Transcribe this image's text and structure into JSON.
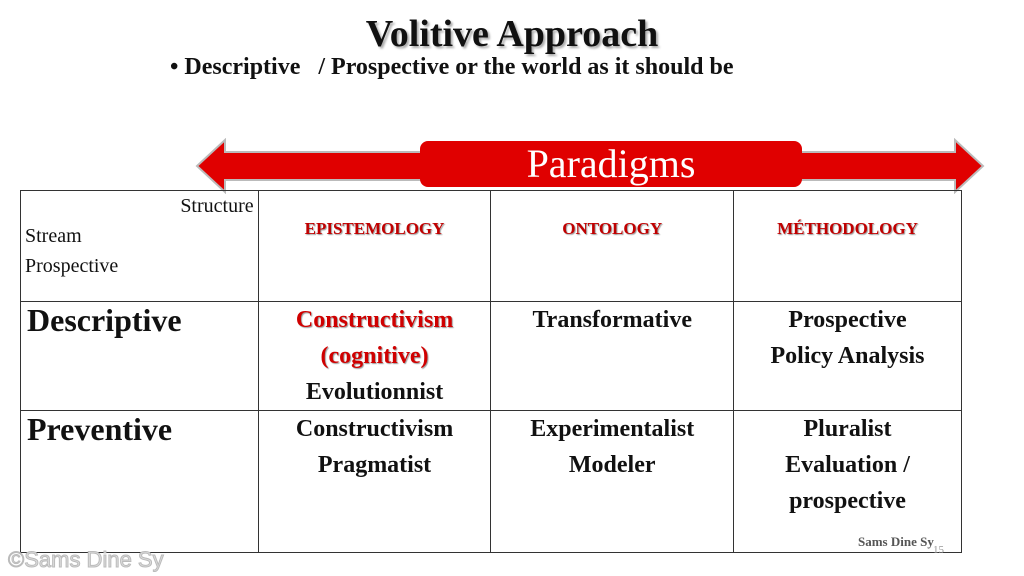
{
  "title": "Volitive Approach",
  "bullet": "Descriptive   / Prospective or the world as it should be",
  "banner": "Paradigms",
  "colors": {
    "accent": "#e00000",
    "header_text": "#c00000"
  },
  "table": {
    "corner": [
      "Structure",
      "Stream",
      "Prospective"
    ],
    "headers": [
      "EPISTEMOLOGY",
      "ONTOLOGY",
      "MÉTHODOLOGY"
    ],
    "rows": [
      {
        "label": "Descriptive",
        "epistemology": [
          "Constructivism",
          "(cognitive)",
          "Evolutionnist"
        ],
        "ontology": [
          "Transformative"
        ],
        "methodology": [
          "Prospective",
          "Policy Analysis"
        ]
      },
      {
        "label": "Preventive",
        "epistemology": [
          "Constructivism",
          "Pragmatist"
        ],
        "ontology": [
          "Experimentalist",
          "Modeler"
        ],
        "methodology": [
          "Pluralist",
          "Evaluation /",
          "prospective"
        ]
      }
    ]
  },
  "footer": {
    "signature": "Sams Dine Sy",
    "page": "15",
    "watermark": "©Sams Dine Sy"
  }
}
